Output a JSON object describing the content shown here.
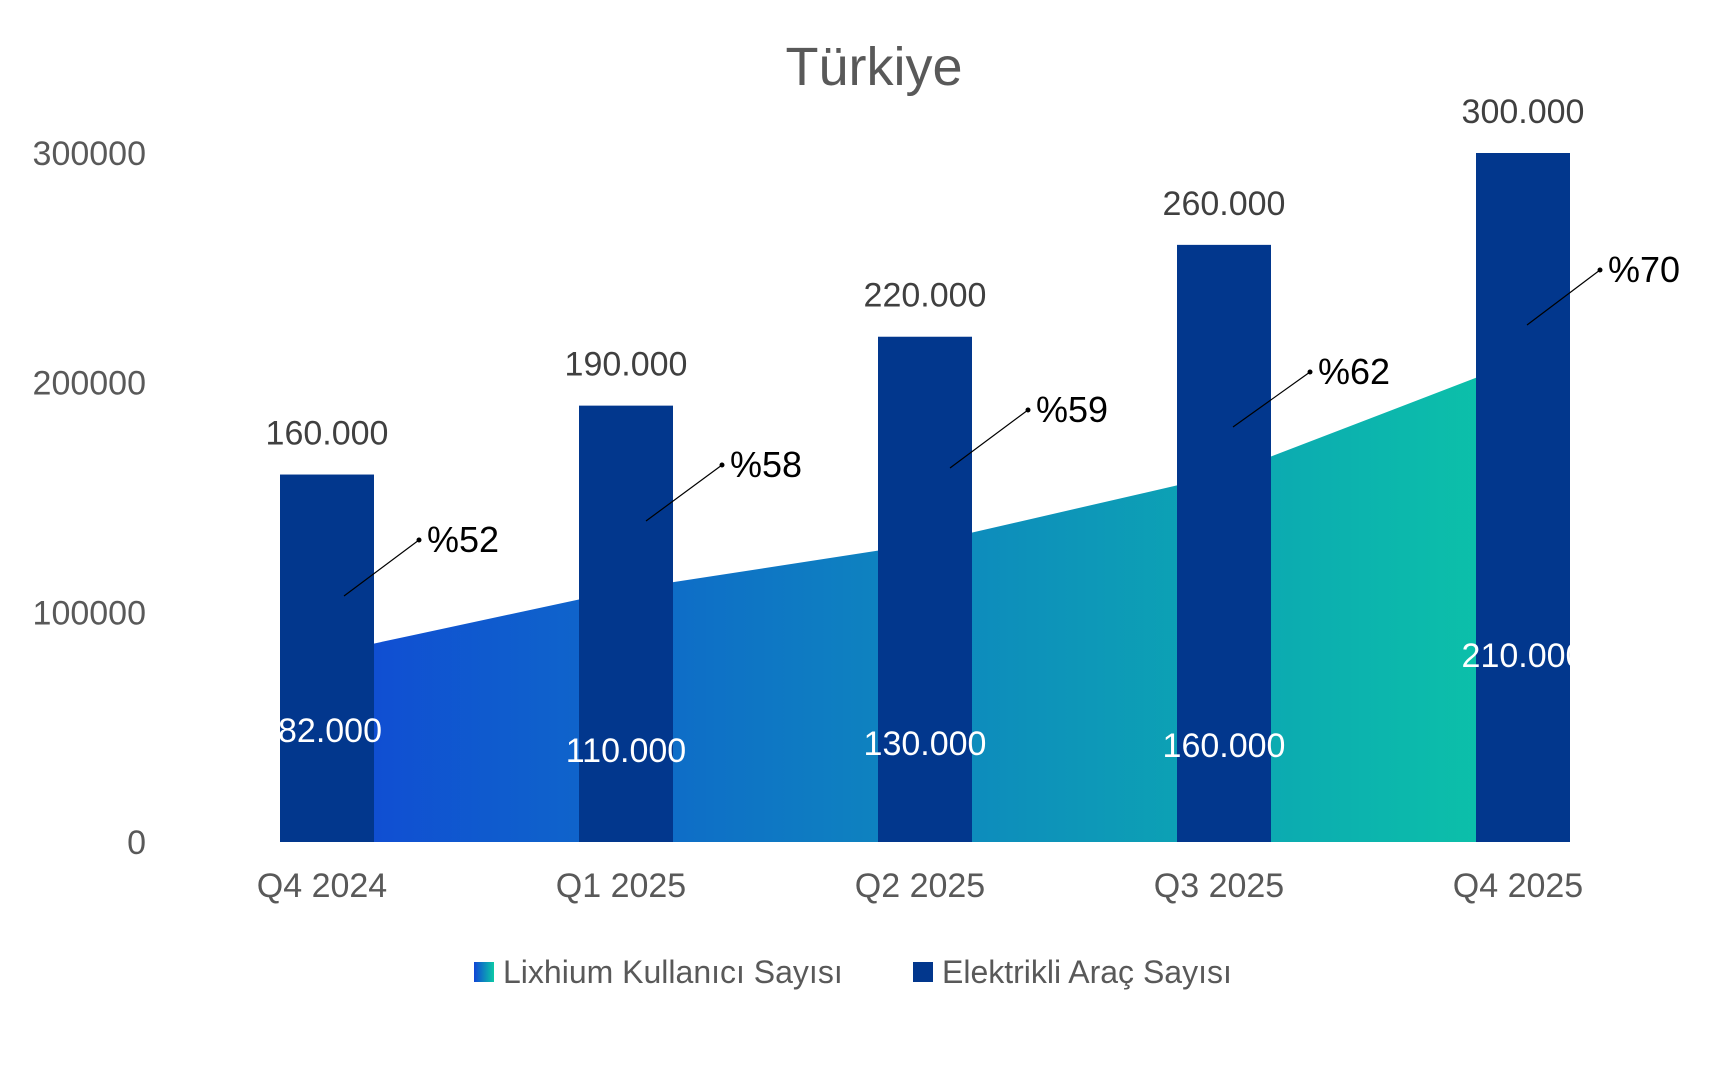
{
  "chart_data": {
    "type": "bar",
    "title": "Türkiye",
    "categories": [
      "Q4 2024",
      "Q1 2025",
      "Q2  2025",
      "Q3 2025",
      "Q4 2025"
    ],
    "ylim": [
      0,
      300000
    ],
    "yticks": [
      "0",
      "100000",
      "200000",
      "300000"
    ],
    "grid": false,
    "legend_position": "bottom",
    "series": [
      {
        "name": "Lixhium Kullanıcı Sayısı",
        "kind": "area",
        "values": [
          82000,
          110000,
          130000,
          160000,
          210000
        ],
        "labels": [
          "82.000",
          "110.000",
          "130.000",
          "160.000",
          "210.000"
        ],
        "colors": [
          "#1045d6",
          "#0bc9a6"
        ]
      },
      {
        "name": "Elektrikli Araç Sayısı",
        "kind": "bar",
        "values": [
          160000,
          190000,
          220000,
          260000,
          300000
        ],
        "labels": [
          "160.000",
          "190.000",
          "220.000",
          "260.000",
          "300.000"
        ],
        "color": "#02378d"
      }
    ],
    "annotations": [
      "%52",
      "%58",
      "%59",
      "%62",
      "%70"
    ]
  }
}
